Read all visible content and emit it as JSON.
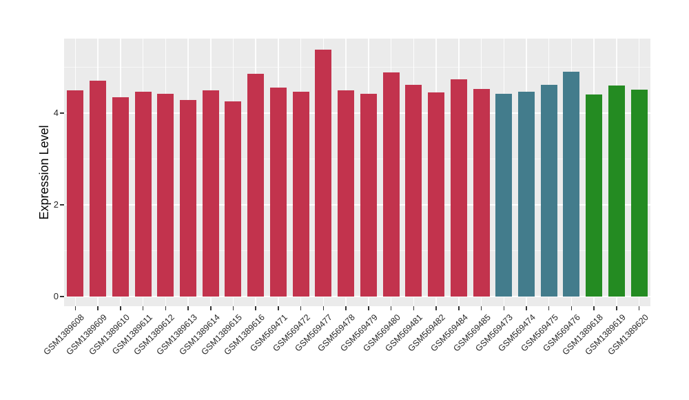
{
  "chart_data": {
    "type": "bar",
    "title": "",
    "xlabel": "",
    "ylabel": "Expression Level",
    "ylim": [
      0,
      5.62
    ],
    "yticks": [
      0,
      2,
      4
    ],
    "minor_gridlines": [
      1,
      3,
      5
    ],
    "grid": "on",
    "legend": "none",
    "panel_background": "#EBEBEB",
    "gridline_color": "#FFFFFF",
    "palette": {
      "group1_red": "#C2334D",
      "group2_teal": "#437C8C",
      "group3_green": "#248B22"
    },
    "bars": [
      {
        "label": "GSM1389608",
        "value": 4.5,
        "color": "#C2334D"
      },
      {
        "label": "GSM1389609",
        "value": 4.7,
        "color": "#C2334D"
      },
      {
        "label": "GSM1389610",
        "value": 4.34,
        "color": "#C2334D"
      },
      {
        "label": "GSM1389611",
        "value": 4.46,
        "color": "#C2334D"
      },
      {
        "label": "GSM1389612",
        "value": 4.42,
        "color": "#C2334D"
      },
      {
        "label": "GSM1389613",
        "value": 4.28,
        "color": "#C2334D"
      },
      {
        "label": "GSM1389614",
        "value": 4.49,
        "color": "#C2334D"
      },
      {
        "label": "GSM1389615",
        "value": 4.25,
        "color": "#C2334D"
      },
      {
        "label": "GSM1389616",
        "value": 4.85,
        "color": "#C2334D"
      },
      {
        "label": "GSM569471",
        "value": 4.55,
        "color": "#C2334D"
      },
      {
        "label": "GSM569472",
        "value": 4.47,
        "color": "#C2334D"
      },
      {
        "label": "GSM569477",
        "value": 5.38,
        "color": "#C2334D"
      },
      {
        "label": "GSM569478",
        "value": 4.5,
        "color": "#C2334D"
      },
      {
        "label": "GSM569479",
        "value": 4.42,
        "color": "#C2334D"
      },
      {
        "label": "GSM569480",
        "value": 4.88,
        "color": "#C2334D"
      },
      {
        "label": "GSM569481",
        "value": 4.62,
        "color": "#C2334D"
      },
      {
        "label": "GSM569482",
        "value": 4.45,
        "color": "#C2334D"
      },
      {
        "label": "GSM569484",
        "value": 4.74,
        "color": "#C2334D"
      },
      {
        "label": "GSM569485",
        "value": 4.52,
        "color": "#C2334D"
      },
      {
        "label": "GSM569473",
        "value": 4.42,
        "color": "#437C8C"
      },
      {
        "label": "GSM569474",
        "value": 4.47,
        "color": "#437C8C"
      },
      {
        "label": "GSM569475",
        "value": 4.62,
        "color": "#437C8C"
      },
      {
        "label": "GSM569476",
        "value": 4.9,
        "color": "#437C8C"
      },
      {
        "label": "GSM1389618",
        "value": 4.4,
        "color": "#248B22"
      },
      {
        "label": "GSM1389619",
        "value": 4.6,
        "color": "#248B22"
      },
      {
        "label": "GSM1389620",
        "value": 4.51,
        "color": "#248B22"
      }
    ]
  }
}
